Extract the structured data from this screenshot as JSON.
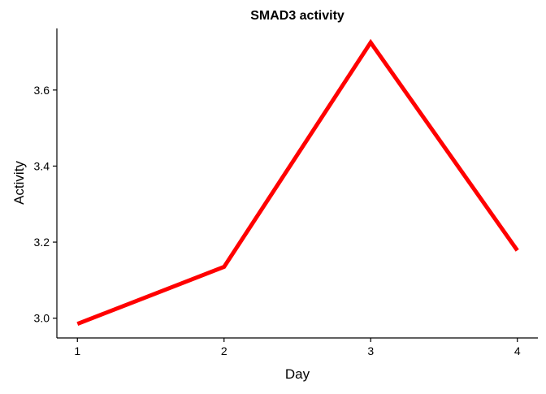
{
  "chart_data": {
    "type": "line",
    "title": "SMAD3 activity",
    "xlabel": "Day",
    "ylabel": "Activity",
    "x": [
      1,
      2,
      3,
      4
    ],
    "series": [
      {
        "values": [
          2.985,
          3.135,
          3.725,
          3.178
        ],
        "color": "#ff0000"
      }
    ],
    "xlim": [
      0.86,
      4.14
    ],
    "ylim": [
      2.948,
      3.762
    ],
    "xticks": [
      1,
      2,
      3,
      4
    ],
    "yticks": [
      3.0,
      3.2,
      3.4,
      3.6
    ],
    "ytick_labels": [
      "3.0",
      "3.2",
      "3.4",
      "3.6"
    ],
    "grid": false,
    "legend": "none"
  }
}
